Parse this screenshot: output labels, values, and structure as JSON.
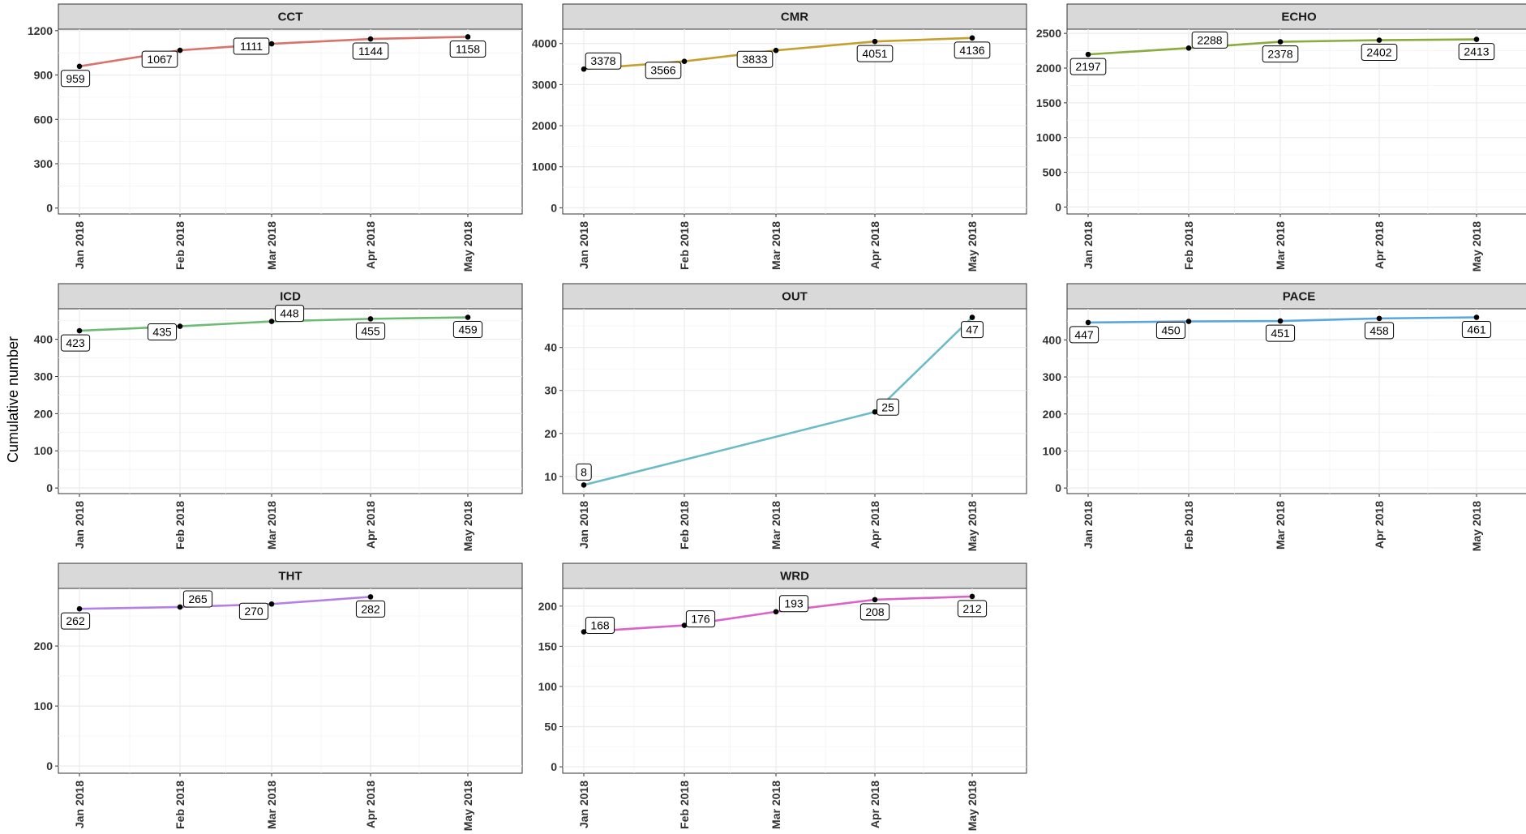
{
  "ylabel": "Cumulative number",
  "chart_data": [
    {
      "type": "line",
      "facet": "CCT",
      "color": "#d9736b",
      "x": [
        "Jan 2018",
        "Feb 2018",
        "Mar 2018",
        "Apr 2018",
        "May 2018"
      ],
      "values": [
        959,
        1067,
        1111,
        1144,
        1158
      ],
      "ylim": [
        -40,
        1210
      ],
      "yticks": [
        0,
        300,
        600,
        900,
        1200
      ],
      "xlabel": "",
      "ylabel": "Cumulative number",
      "grid": true
    },
    {
      "type": "line",
      "facet": "CMR",
      "color": "#c5a02e",
      "x": [
        "Jan 2018",
        "Feb 2018",
        "Mar 2018",
        "Apr 2018",
        "May 2018"
      ],
      "values": [
        3378,
        3566,
        3833,
        4051,
        4136
      ],
      "ylim": [
        -150,
        4350
      ],
      "yticks": [
        0,
        1000,
        2000,
        3000,
        4000
      ],
      "xlabel": "",
      "ylabel": "Cumulative number",
      "grid": true
    },
    {
      "type": "line",
      "facet": "ECHO",
      "color": "#8aab3d",
      "x": [
        "Jan 2018",
        "Feb 2018",
        "Mar 2018",
        "Apr 2018",
        "May 2018"
      ],
      "values": [
        2197,
        2288,
        2378,
        2402,
        2413
      ],
      "ylim": [
        -100,
        2560
      ],
      "yticks": [
        0,
        500,
        1000,
        1500,
        2000,
        2500
      ],
      "xlabel": "",
      "ylabel": "Cumulative number",
      "grid": true
    },
    {
      "type": "line",
      "facet": "ICD",
      "color": "#6dbb74",
      "x": [
        "Jan 2018",
        "Feb 2018",
        "Mar 2018",
        "Apr 2018",
        "May 2018"
      ],
      "values": [
        423,
        435,
        448,
        455,
        459
      ],
      "ylim": [
        -15,
        482
      ],
      "yticks": [
        0,
        100,
        200,
        300,
        400
      ],
      "xlabel": "",
      "ylabel": "Cumulative number",
      "grid": true
    },
    {
      "type": "line",
      "facet": "OUT",
      "color": "#6cbcc8",
      "x": [
        "Jan 2018",
        "Feb 2018",
        "Mar 2018",
        "Apr 2018",
        "May 2018"
      ],
      "points": [
        {
          "x": "Jan 2018",
          "y": 8
        },
        {
          "x": "Apr 2018",
          "y": 25
        },
        {
          "x": "May 2018",
          "y": 47
        }
      ],
      "ylim": [
        6,
        49
      ],
      "yticks": [
        10,
        20,
        30,
        40
      ],
      "xlabel": "",
      "ylabel": "Cumulative number",
      "grid": true
    },
    {
      "type": "line",
      "facet": "PACE",
      "color": "#5aa7e0",
      "x": [
        "Jan 2018",
        "Feb 2018",
        "Mar 2018",
        "Apr 2018",
        "May 2018"
      ],
      "values": [
        447,
        450,
        451,
        458,
        461
      ],
      "ylim": [
        -15,
        484
      ],
      "yticks": [
        0,
        100,
        200,
        300,
        400
      ],
      "xlabel": "",
      "ylabel": "Cumulative number",
      "grid": true
    },
    {
      "type": "line",
      "facet": "THT",
      "color": "#b47fe6",
      "x": [
        "Jan 2018",
        "Feb 2018",
        "Mar 2018",
        "Apr 2018",
        "May 2018"
      ],
      "points": [
        {
          "x": "Jan 2018",
          "y": 262
        },
        {
          "x": "Feb 2018",
          "y": 265
        },
        {
          "x": "Mar 2018",
          "y": 270
        },
        {
          "x": "Apr 2018",
          "y": 282
        }
      ],
      "ylim": [
        -12,
        296
      ],
      "yticks": [
        0,
        100,
        200
      ],
      "xlabel": "",
      "ylabel": "Cumulative number",
      "grid": true
    },
    {
      "type": "line",
      "facet": "WRD",
      "color": "#d963c6",
      "x": [
        "Jan 2018",
        "Feb 2018",
        "Mar 2018",
        "Apr 2018",
        "May 2018"
      ],
      "values": [
        168,
        176,
        193,
        208,
        212
      ],
      "ylim": [
        -8,
        222
      ],
      "yticks": [
        0,
        50,
        100,
        150,
        200
      ],
      "xlabel": "",
      "ylabel": "Cumulative number",
      "grid": true
    }
  ]
}
